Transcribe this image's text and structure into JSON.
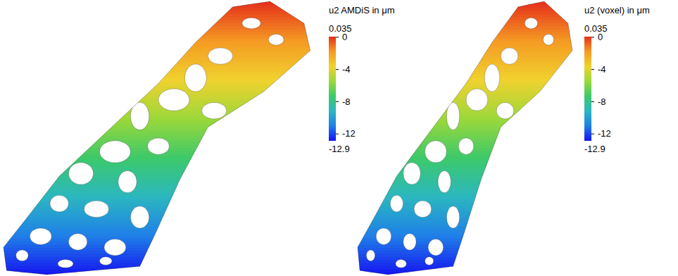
{
  "chart_data": [
    {
      "type": "surface",
      "title": "u2 AMDiS in μm",
      "colorbar": {
        "range": [
          -12.9,
          0.035
        ],
        "ticks": [
          0,
          -4,
          -8,
          -12
        ]
      }
    },
    {
      "type": "surface",
      "title": "u2 (voxel) in μm",
      "colorbar": {
        "range": [
          -12.9,
          0.035
        ],
        "ticks": [
          0,
          -4,
          -8,
          -12
        ]
      }
    }
  ]
}
